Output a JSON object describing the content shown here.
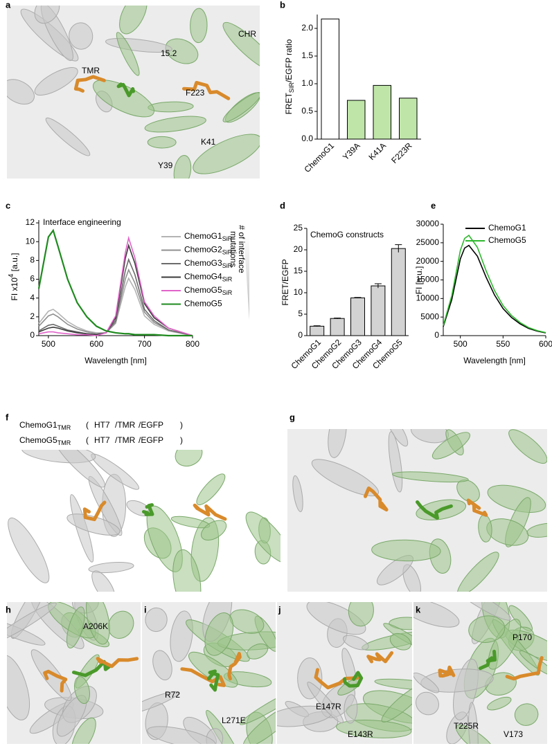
{
  "chart_data": [
    {
      "type": "bar",
      "panel": "b",
      "ylabel": "FRET",
      "ylabel_sub": "SIR",
      "ylabel_rest": "/EGFP ratio",
      "categories": [
        "ChemoG1",
        "Y39A",
        "K41A",
        "F223R"
      ],
      "values": [
        2.17,
        0.7,
        0.97,
        0.74
      ],
      "colors": [
        "#ffffff",
        "#bfe6a8",
        "#bfe6a8",
        "#bfe6a8"
      ],
      "ylim": [
        0,
        2.25
      ],
      "yticks": [
        {
          "value": 0,
          "label": "0.0"
        },
        0.5,
        {
          "value": 1,
          "label": "1.0"
        },
        1.5,
        {
          "value": 2,
          "label": "2.0"
        }
      ]
    },
    {
      "type": "line",
      "panel": "c",
      "annotation": "Interface engineering",
      "side_note": [
        "# of interface",
        "mutations"
      ],
      "ylabel": "FI x10",
      "ylabel_sup": "4",
      "ylabel_rest": " [a.u.]",
      "xlabel": "Wavelength [nm]",
      "x": [
        480,
        500,
        510,
        520,
        540,
        560,
        580,
        600,
        620,
        640,
        660,
        667,
        680,
        700,
        720,
        750,
        800
      ],
      "series": [
        {
          "name": "ChemoG1",
          "sub": "SiR",
          "color": "#b3b3b3",
          "values": [
            1.3,
            2.6,
            2.8,
            2.4,
            1.5,
            0.9,
            0.5,
            0.3,
            0.3,
            1.3,
            5.2,
            6.1,
            4.9,
            2.1,
            1.2,
            0.5,
            0
          ]
        },
        {
          "name": "ChemoG2",
          "sub": "SiR",
          "color": "#8f8f8f",
          "values": [
            1.0,
            2.1,
            2.3,
            2.0,
            1.2,
            0.7,
            0.4,
            0.2,
            0.3,
            1.4,
            6.0,
            7.0,
            5.6,
            2.5,
            1.4,
            0.6,
            0
          ]
        },
        {
          "name": "ChemoG3",
          "sub": "SiR",
          "color": "#6b6b6b",
          "values": [
            0.5,
            1.1,
            1.2,
            1.0,
            0.6,
            0.4,
            0.2,
            0.1,
            0.3,
            1.6,
            6.9,
            8.1,
            6.5,
            2.8,
            1.6,
            0.6,
            0
          ]
        },
        {
          "name": "ChemoG4",
          "sub": "SiR",
          "color": "#3a3a3a",
          "values": [
            0.4,
            0.8,
            0.9,
            0.8,
            0.5,
            0.3,
            0.2,
            0.1,
            0.3,
            1.9,
            8.2,
            9.6,
            7.7,
            3.4,
            1.9,
            0.8,
            0
          ]
        },
        {
          "name": "ChemoG5",
          "sub": "SiR",
          "color": "#e062c9",
          "values": [
            0.2,
            0.4,
            0.4,
            0.3,
            0.2,
            0.1,
            0.1,
            0,
            0.3,
            2.1,
            8.8,
            10.4,
            8.3,
            3.6,
            2.1,
            0.8,
            0
          ]
        },
        {
          "name": "ChemoG5",
          "color": "#1e8a1e",
          "values": [
            5.0,
            10.5,
            11.2,
            9.5,
            6.0,
            3.5,
            2.0,
            1.0,
            0.5,
            0.3,
            0.2,
            0.2,
            0.1,
            0.1,
            0.1,
            0,
            0
          ]
        }
      ],
      "xlim": [
        480,
        800
      ],
      "xticks": [
        500,
        600,
        700,
        800
      ],
      "ylim": [
        0,
        12.3
      ],
      "yticks": [
        0,
        2,
        4,
        6,
        8,
        10,
        12
      ]
    },
    {
      "type": "bar",
      "panel": "d",
      "annotation": "ChemoG constructs",
      "ylabel": "FRET/EGFP",
      "categories": [
        "ChemoG1",
        "ChemoG2",
        "ChemoG3",
        "ChemoG4",
        "ChemoG5"
      ],
      "values": [
        2.2,
        4.0,
        8.8,
        11.6,
        20.3
      ],
      "errors": [
        0.1,
        0.1,
        0.1,
        0.5,
        0.9
      ],
      "color": "#d3d3d3",
      "ylim": [
        0,
        25
      ],
      "yticks": [
        0,
        5,
        10,
        15,
        20,
        25
      ]
    },
    {
      "type": "line",
      "panel": "e",
      "ylabel": "FI [a.u.]",
      "xlabel": "Wavelength [nm]",
      "x": [
        480,
        490,
        500,
        505,
        510,
        520,
        530,
        540,
        550,
        560,
        570,
        580,
        590,
        600
      ],
      "series": [
        {
          "name": "ChemoG1",
          "color": "#000000",
          "values": [
            2430,
            9720,
            20660,
            23570,
            24300,
            21380,
            15800,
            10940,
            7290,
            4860,
            3160,
            1940,
            1220,
            730
          ]
        },
        {
          "name": "ChemoG5",
          "color": "#2db82d",
          "values": [
            2700,
            10800,
            22950,
            26190,
            27000,
            23760,
            17550,
            12150,
            8100,
            5400,
            3510,
            2160,
            1350,
            810
          ]
        }
      ],
      "xlim": [
        480,
        600
      ],
      "xticks": [
        500,
        550,
        600
      ],
      "ylim": [
        0,
        30000
      ],
      "yticks": [
        0,
        5000,
        10000,
        15000,
        20000,
        25000,
        30000
      ]
    }
  ],
  "structure_panels": [
    {
      "letter": "a",
      "labels": [
        "TMR",
        "CHR",
        "15.2",
        "F223",
        "K41",
        "Y39"
      ]
    },
    {
      "letter": "f",
      "legend": [
        {
          "name": "ChemoG1",
          "sub": "TMR",
          "open": "(",
          "parts": [
            "HT7",
            "/TMR",
            "/EGFP"
          ],
          "close": ")"
        },
        {
          "name": "ChemoG5",
          "sub": "TMR",
          "open": "(",
          "parts": [
            "HT7",
            "/TMR",
            "/EGFP"
          ],
          "close": ")"
        }
      ]
    },
    {
      "letter": "g",
      "labels": []
    },
    {
      "letter": "h",
      "labels": [
        "A206K"
      ]
    },
    {
      "letter": "i",
      "labels": [
        "R72",
        "L271E"
      ]
    },
    {
      "letter": "j",
      "labels": [
        "E147R",
        "E143R"
      ]
    },
    {
      "letter": "k",
      "labels": [
        "T225R",
        "P170",
        "V173"
      ]
    }
  ]
}
